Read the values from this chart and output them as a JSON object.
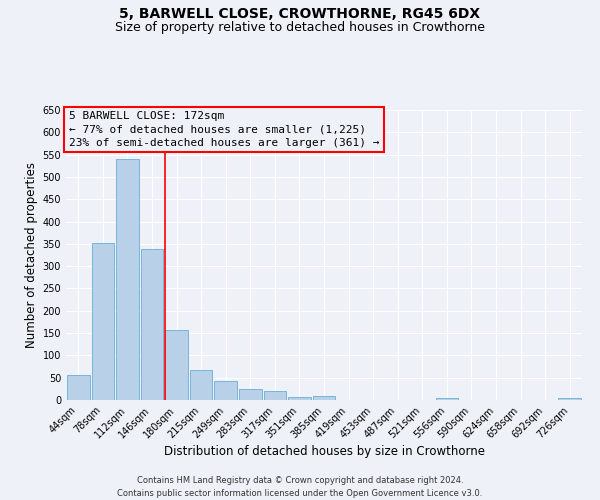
{
  "title": "5, BARWELL CLOSE, CROWTHORNE, RG45 6DX",
  "subtitle": "Size of property relative to detached houses in Crowthorne",
  "xlabel": "Distribution of detached houses by size in Crowthorne",
  "ylabel": "Number of detached properties",
  "bin_labels": [
    "44sqm",
    "78sqm",
    "112sqm",
    "146sqm",
    "180sqm",
    "215sqm",
    "249sqm",
    "283sqm",
    "317sqm",
    "351sqm",
    "385sqm",
    "419sqm",
    "453sqm",
    "487sqm",
    "521sqm",
    "556sqm",
    "590sqm",
    "624sqm",
    "658sqm",
    "692sqm",
    "726sqm"
  ],
  "bar_values": [
    57,
    353,
    540,
    338,
    158,
    68,
    42,
    25,
    20,
    7,
    10,
    0,
    0,
    0,
    0,
    5,
    0,
    0,
    0,
    0,
    5
  ],
  "bar_color": "#b8d0e8",
  "bar_edge_color": "#6aaed6",
  "reference_line_index": 4,
  "ylim": [
    0,
    650
  ],
  "yticks": [
    0,
    50,
    100,
    150,
    200,
    250,
    300,
    350,
    400,
    450,
    500,
    550,
    600,
    650
  ],
  "annotation_title": "5 BARWELL CLOSE: 172sqm",
  "annotation_line1": "← 77% of detached houses are smaller (1,225)",
  "annotation_line2": "23% of semi-detached houses are larger (361) →",
  "footer_line1": "Contains HM Land Registry data © Crown copyright and database right 2024.",
  "footer_line2": "Contains public sector information licensed under the Open Government Licence v3.0.",
  "bg_color": "#eef2f8",
  "grid_color": "#ffffff",
  "title_fontsize": 10,
  "subtitle_fontsize": 9,
  "axis_label_fontsize": 8.5,
  "tick_label_fontsize": 7,
  "annotation_fontsize": 8,
  "footer_fontsize": 6
}
